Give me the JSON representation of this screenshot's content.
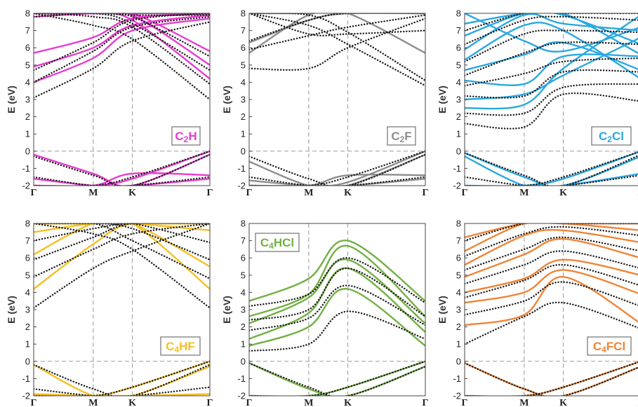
{
  "chart_data": [
    {
      "type": "line",
      "material": "C2H",
      "label_main": "C",
      "label_sub": "2",
      "label_tail": "H",
      "label_position": "bottom-right",
      "color": "#e83ccf",
      "ylabel": "E (eV)",
      "x_ticks": [
        "Γ",
        "M",
        "K",
        "Γ"
      ],
      "ylim": [
        -2,
        8
      ],
      "y_ticks": [
        "-2",
        "-1",
        "0",
        "1",
        "2",
        "3",
        "4",
        "5",
        "6",
        "7",
        "8"
      ],
      "grid": "dashed lines at M, K and E = 0",
      "series": [
        {
          "style": "solid",
          "values": [
            [
              5.7,
              6.6,
              7.7,
              8.0
            ],
            [
              4.9,
              6.0,
              7.3,
              7.9
            ],
            [
              4.0,
              5.4,
              7.0,
              7.7
            ],
            [
              -1.6,
              -2.0,
              -2.0,
              -1.6
            ],
            [
              -0.2,
              -1.3,
              -2.0,
              -0.2
            ],
            [
              7.8,
              8.0,
              8.0,
              8.0
            ],
            [
              8.0,
              8.0,
              8.0,
              5.8
            ],
            [
              8.0,
              8.0,
              7.9,
              5.0
            ],
            [
              8.0,
              8.0,
              7.6,
              4.2
            ],
            [
              -2.0,
              -2.0,
              -1.6,
              0.0
            ],
            [
              -2.0,
              -2.0,
              -1.3,
              -1.4
            ]
          ]
        },
        {
          "style": "dotted",
          "values": [
            [
              4.7,
              6.3,
              7.6,
              8.0
            ],
            [
              4.0,
              5.8,
              7.2,
              7.8
            ],
            [
              3.1,
              4.8,
              6.4,
              7.5
            ],
            [
              -1.5,
              -2.0,
              -2.0,
              -1.5
            ],
            [
              -0.3,
              -1.4,
              -2.0,
              -0.2
            ],
            [
              7.8,
              8.0,
              7.9,
              7.9
            ],
            [
              8.0,
              8.0,
              7.8,
              5.5
            ],
            [
              8.0,
              8.0,
              7.4,
              4.7
            ],
            [
              8.0,
              7.8,
              7.2,
              3.9
            ],
            [
              8.0,
              7.3,
              6.5,
              3.0
            ],
            [
              -2.0,
              -2.0,
              -1.5,
              0.0
            ]
          ]
        }
      ]
    },
    {
      "type": "line",
      "material": "C2F",
      "label_main": "C",
      "label_sub": "2",
      "label_tail": "F",
      "label_position": "bottom-right",
      "color": "#8d8d8d",
      "ylabel": "E (eV)",
      "x_ticks": [
        "Γ",
        "M",
        "K",
        "Γ"
      ],
      "ylim": [
        -2,
        8
      ],
      "y_ticks": [
        "-2",
        "-1",
        "0",
        "1",
        "2",
        "3",
        "4",
        "5",
        "6",
        "7",
        "8"
      ],
      "grid": "dashed lines at M, K and E = 0",
      "series": [
        {
          "style": "solid",
          "values": [
            [
              5.7,
              7.9,
              8.0,
              8.0
            ],
            [
              6.3,
              7.6,
              8.0,
              8.0
            ],
            [
              8.0,
              8.0,
              8.0,
              5.7
            ],
            [
              -0.6,
              -2.0,
              -2.0,
              -1.6
            ],
            [
              -1.7,
              -2.0,
              -2.0,
              -0.2
            ],
            [
              -2.0,
              -2.0,
              -1.8,
              0.0
            ],
            [
              -2.0,
              -2.0,
              -1.4,
              -1.4
            ]
          ]
        },
        {
          "style": "dotted",
          "values": [
            [
              6.4,
              7.6,
              8.0,
              8.0
            ],
            [
              5.9,
              6.7,
              7.2,
              7.9
            ],
            [
              4.8,
              4.8,
              6.0,
              7.7
            ],
            [
              8.0,
              7.9,
              6.9,
              4.1
            ],
            [
              8.0,
              7.3,
              6.2,
              3.8
            ],
            [
              8.0,
              6.8,
              6.8,
              7.0
            ],
            [
              -0.3,
              -1.6,
              -2.0,
              -0.2
            ],
            [
              -1.5,
              -2.0,
              -2.0,
              -1.5
            ],
            [
              -2.0,
              -2.0,
              -1.5,
              0.0
            ]
          ]
        }
      ]
    },
    {
      "type": "line",
      "material": "C2Cl",
      "label_main": "C",
      "label_sub": "2",
      "label_tail": "Cl",
      "label_position": "bottom-right",
      "color": "#2aa8e0",
      "ylabel": "E (eV)",
      "x_ticks": [
        "Γ",
        "M",
        "K",
        "Γ"
      ],
      "ylim": [
        -2,
        8
      ],
      "y_ticks": [
        "-2",
        "-1",
        "0",
        "1",
        "2",
        "3",
        "4",
        "5",
        "6",
        "7",
        "8"
      ],
      "grid": "dashed lines at M, K and E = 0",
      "series": [
        {
          "style": "solid",
          "values": [
            [
              2.5,
              2.7,
              4.8,
              7.9
            ],
            [
              3.0,
              3.3,
              4.4,
              6.6
            ],
            [
              4.1,
              3.9,
              5.5,
              5.5
            ],
            [
              4.7,
              5.6,
              6.3,
              4.7
            ],
            [
              5.3,
              7.3,
              7.0,
              4.2
            ],
            [
              5.9,
              7.9,
              7.4,
              7.0
            ],
            [
              6.7,
              8.0,
              7.9,
              6.2
            ],
            [
              7.4,
              8.0,
              8.0,
              5.6
            ],
            [
              8.0,
              6.4,
              5.8,
              7.2
            ],
            [
              -0.1,
              -1.5,
              -2.0,
              -0.3
            ],
            [
              -0.3,
              -2.0,
              -2.0,
              -1.3
            ],
            [
              -2.0,
              -2.0,
              -1.6,
              0.0
            ]
          ]
        },
        {
          "style": "dotted",
          "values": [
            [
              1.6,
              1.4,
              3.3,
              2.9
            ],
            [
              2.2,
              2.2,
              3.7,
              3.9
            ],
            [
              3.2,
              3.2,
              4.6,
              4.6
            ],
            [
              3.8,
              4.5,
              5.2,
              5.4
            ],
            [
              4.4,
              5.7,
              6.3,
              6.2
            ],
            [
              5.2,
              6.8,
              7.0,
              6.9
            ],
            [
              6.2,
              7.6,
              7.8,
              7.6
            ],
            [
              7.0,
              8.0,
              8.0,
              8.0
            ],
            [
              -0.1,
              -1.4,
              -2.0,
              -0.2
            ],
            [
              -1.5,
              -2.0,
              -2.0,
              -1.4
            ],
            [
              -2.0,
              -2.0,
              -1.5,
              0.0
            ]
          ]
        }
      ]
    },
    {
      "type": "line",
      "material": "C4HF",
      "label_main": "C",
      "label_sub": "4",
      "label_tail": "HF",
      "label_position": "bottom-right",
      "color": "#f5c024",
      "ylabel": "E (eV)",
      "x_ticks": [
        "Γ",
        "M",
        "K",
        "Γ"
      ],
      "ylim": [
        -2,
        8
      ],
      "y_ticks": [
        "-2",
        "-1",
        "0",
        "1",
        "2",
        "3",
        "4",
        "5",
        "6",
        "7",
        "8"
      ],
      "grid": "dashed lines at M, K and E = 0",
      "series": [
        {
          "style": "solid",
          "values": [
            [
              4.2,
              6.8,
              8.0,
              8.0
            ],
            [
              6.2,
              8.0,
              8.0,
              8.0
            ],
            [
              7.5,
              8.0,
              8.0,
              8.0
            ],
            [
              8.0,
              8.0,
              8.0,
              4.2
            ],
            [
              8.0,
              8.0,
              8.0,
              5.5
            ],
            [
              8.0,
              8.0,
              8.0,
              7.6
            ],
            [
              -1.9,
              -2.0,
              -2.0,
              -1.9
            ],
            [
              -0.2,
              -2.0,
              -2.0,
              -0.3
            ],
            [
              -2.0,
              -2.0,
              -1.5,
              0.0
            ]
          ]
        },
        {
          "style": "dotted",
          "values": [
            [
              3.1,
              5.4,
              6.4,
              8.0
            ],
            [
              4.9,
              6.5,
              7.4,
              8.0
            ],
            [
              5.9,
              7.2,
              8.0,
              8.0
            ],
            [
              7.0,
              7.7,
              8.0,
              8.0
            ],
            [
              8.0,
              7.4,
              6.5,
              3.1
            ],
            [
              8.0,
              8.0,
              7.0,
              4.8
            ],
            [
              8.0,
              8.0,
              7.7,
              5.9
            ],
            [
              8.0,
              8.0,
              8.0,
              6.9
            ],
            [
              -0.2,
              -1.6,
              -2.0,
              -0.2
            ],
            [
              -1.6,
              -2.0,
              -2.0,
              -1.5
            ],
            [
              -2.0,
              -2.0,
              -1.5,
              0.0
            ]
          ]
        }
      ]
    },
    {
      "type": "line",
      "material": "C4HCl",
      "label_main": "C",
      "label_sub": "4",
      "label_tail": "HCl",
      "label_position": "top-left",
      "color": "#72b043",
      "ylabel": "E (eV)",
      "x_ticks": [
        "Γ",
        "M",
        "K",
        "Γ"
      ],
      "ylim": [
        -2,
        8
      ],
      "y_ticks": [
        "-2",
        "-1",
        "0",
        "1",
        "2",
        "3",
        "4",
        "5",
        "6",
        "7",
        "8"
      ],
      "grid": "dashed lines at M, K and E = 0",
      "series": [
        {
          "style": "solid",
          "values": [
            [
              0.9,
              2.0,
              4.2,
              0.9
            ],
            [
              1.3,
              2.8,
              5.4,
              1.7
            ],
            [
              2.2,
              3.7,
              5.9,
              2.2
            ],
            [
              2.6,
              3.9,
              6.7,
              2.6
            ],
            [
              3.5,
              4.8,
              7.0,
              3.5
            ],
            [
              -0.1,
              -1.6,
              -2.0,
              -0.3
            ],
            [
              -2.0,
              -2.0,
              -1.5,
              0.0
            ]
          ]
        },
        {
          "style": "dotted",
          "values": [
            [
              0.6,
              1.0,
              2.9,
              1.3
            ],
            [
              1.8,
              2.5,
              4.4,
              2.1
            ],
            [
              2.4,
              3.0,
              5.4,
              2.6
            ],
            [
              3.2,
              3.9,
              6.0,
              3.4
            ],
            [
              -0.1,
              -1.5,
              -2.0,
              -0.3
            ],
            [
              -2.0,
              -2.0,
              -1.5,
              0.0
            ]
          ]
        }
      ]
    },
    {
      "type": "line",
      "material": "C4FCl",
      "label_main": "C",
      "label_sub": "4",
      "label_tail": "FCl",
      "label_position": "bottom-right",
      "color": "#f08435",
      "ylabel": "E (eV)",
      "x_ticks": [
        "Γ",
        "M",
        "K",
        "Γ"
      ],
      "ylim": [
        -2,
        8
      ],
      "y_ticks": [
        "-2",
        "-1",
        "0",
        "1",
        "2",
        "3",
        "4",
        "5",
        "6",
        "7",
        "8"
      ],
      "grid": "dashed lines at M, K and E = 0",
      "series": [
        {
          "style": "solid",
          "values": [
            [
              2.1,
              2.7,
              4.9,
              2.2
            ],
            [
              3.4,
              4.0,
              5.3,
              3.9
            ],
            [
              4.0,
              4.8,
              5.9,
              5.0
            ],
            [
              4.9,
              6.2,
              7.1,
              6.0
            ],
            [
              5.6,
              7.3,
              7.6,
              6.9
            ],
            [
              6.4,
              8.0,
              8.0,
              7.6
            ],
            [
              7.2,
              8.0,
              8.0,
              8.0
            ],
            [
              -0.1,
              -1.6,
              -2.0,
              -0.3
            ],
            [
              -2.0,
              -2.0,
              -1.5,
              0.0
            ]
          ]
        },
        {
          "style": "dotted",
          "values": [
            [
              1.0,
              2.6,
              3.4,
              1.9
            ],
            [
              2.7,
              3.5,
              4.6,
              3.2
            ],
            [
              3.7,
              4.7,
              5.6,
              4.4
            ],
            [
              4.5,
              5.6,
              6.4,
              5.4
            ],
            [
              5.3,
              6.5,
              7.2,
              6.4
            ],
            [
              6.1,
              7.4,
              7.8,
              7.3
            ],
            [
              7.0,
              8.0,
              8.0,
              8.0
            ],
            [
              -0.1,
              -1.6,
              -2.0,
              -0.3
            ],
            [
              -2.0,
              -2.0,
              -1.5,
              0.0
            ]
          ]
        }
      ]
    }
  ]
}
